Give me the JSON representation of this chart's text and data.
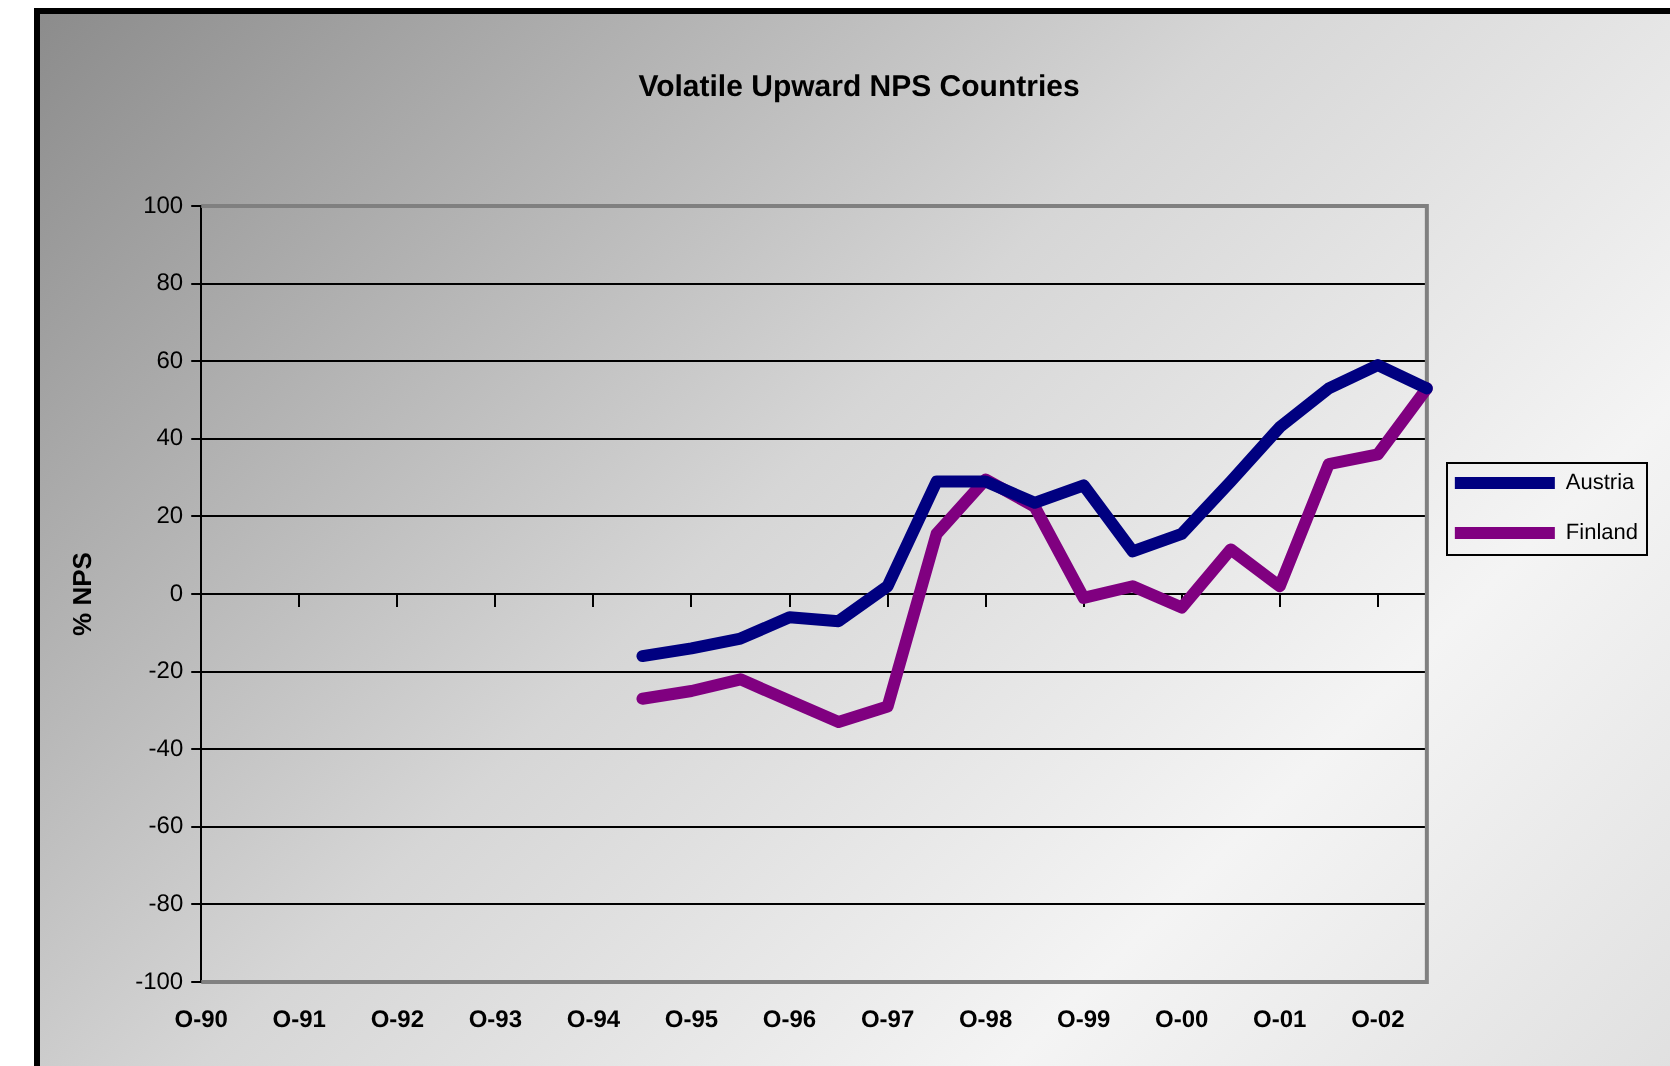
{
  "chart_data": {
    "type": "line",
    "title": "Volatile Upward NPS Countries",
    "ylabel": "% NPS",
    "categories": [
      "O-90",
      null,
      "O-91",
      null,
      "O-92",
      null,
      "O-93",
      null,
      "O-94",
      null,
      "O-95",
      null,
      "O-96",
      null,
      "O-97",
      null,
      "O-98",
      null,
      "O-99",
      null,
      "O-00",
      null,
      "O-01",
      null,
      "O-02",
      null
    ],
    "ylim": [
      -100,
      100
    ],
    "yticks": [
      -100,
      -80,
      -60,
      -40,
      -20,
      0,
      20,
      40,
      60,
      80,
      100
    ],
    "series": [
      {
        "name": "Austria",
        "color": "#000080",
        "values": [
          null,
          null,
          null,
          null,
          null,
          null,
          null,
          null,
          null,
          -16,
          -14,
          -11.5,
          -6,
          -7,
          2,
          29,
          29,
          23.5,
          28,
          11,
          15.5,
          29,
          43,
          53,
          59,
          53
        ]
      },
      {
        "name": "Finland",
        "color": "#800080",
        "values": [
          null,
          null,
          null,
          null,
          null,
          null,
          null,
          null,
          null,
          -27,
          -25,
          -22,
          -27.5,
          -33,
          -29,
          15.5,
          29.5,
          22.5,
          -1,
          2,
          -3.5,
          11.5,
          2,
          33.5,
          36,
          53
        ]
      }
    ],
    "grid": "y",
    "legend": "right",
    "marker": "none"
  }
}
